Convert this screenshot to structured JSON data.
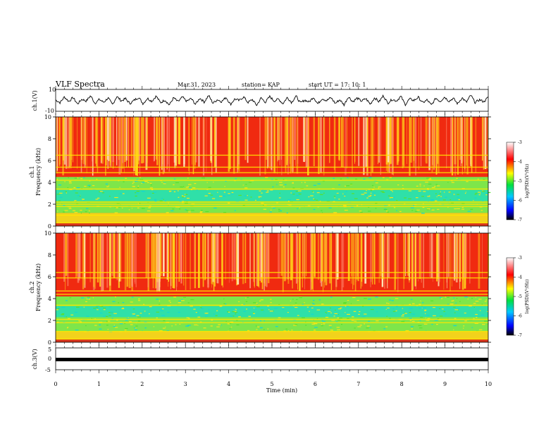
{
  "header": {
    "title": "VLF Spectra",
    "date": "Mar.31, 2023",
    "station": "station= KAP",
    "start": "start  UT =   17: 10: 1"
  },
  "colors": {
    "trace": "#000000",
    "spectrogram_bg": "#f02a10",
    "bands": "#ffe600",
    "noise_band": "#22e68c"
  },
  "chart_data": [
    {
      "type": "line",
      "name": "ch1-waveform",
      "ylabel": "ch.1(V)",
      "ylim": [
        -10,
        10
      ],
      "yticks": [
        "10",
        "-10"
      ],
      "xlim": [
        0,
        10
      ],
      "note_values": "dense oscillating waveform, amplitude ~ -6..+5 V around 0",
      "samples": [
        0.4,
        -2.1,
        3.2,
        -1.0,
        2.6,
        -3.4,
        1.1,
        -0.6,
        4.2,
        -2.7,
        0.9,
        -1.8,
        2.3,
        -4.0,
        3.6,
        -0.4,
        1.5,
        -2.9,
        0.2,
        2.8,
        -3.1,
        1.9,
        -0.8,
        3.9,
        -2.2,
        0.5,
        -4.3,
        2.4,
        -1.3,
        3.0,
        -0.9,
        1.7,
        -3.6,
        2.1,
        -1.5,
        4.5,
        -2.6,
        0.7,
        -1.1,
        2.9,
        -3.8,
        1.4,
        -0.3,
        3.3,
        -2.0,
        0.8,
        -4.6,
        2.2,
        -1.7,
        3.5,
        -0.6,
        1.2,
        -3.0,
        2.7,
        -1.9,
        4.0,
        -2.4,
        0.3,
        -1.6,
        3.1,
        -3.3,
        1.8,
        -0.2,
        2.5,
        -2.8,
        0.6,
        -4.1,
        3.4,
        -1.2,
        2.0,
        -0.7,
        1.6,
        -3.5,
        2.6,
        -1.4,
        4.4,
        -2.5,
        0.9,
        -0.5,
        3.7,
        -3.9,
        1.3,
        -0.1,
        2.8,
        -2.3,
        0.4,
        -4.4,
        2.1,
        -1.0,
        3.2,
        -0.8,
        1.9,
        -3.2,
        2.4,
        -1.8,
        4.8,
        -2.1,
        0.6,
        -1.3,
        3.0
      ]
    },
    {
      "type": "heatmap",
      "name": "ch1-spectrogram",
      "ylabel": "ch.1\nFrequency (kHz)",
      "ylim": [
        0,
        10
      ],
      "yticks": [
        "0",
        "2",
        "4",
        "6",
        "8",
        "10"
      ],
      "xlim": [
        0,
        10
      ],
      "colorbar": {
        "label": "log(PSD)(V²/Hz)",
        "range": [
          -7,
          -3
        ],
        "ticks": [
          "-3",
          "-4",
          "-5",
          "-6",
          "-7"
        ]
      },
      "bands_kHz": {
        "strong_red": [
          4.6,
          10
        ],
        "yellow_lines": [
          0.3,
          1.0,
          1.8,
          2.0,
          2.2,
          3.4,
          4.2,
          4.9,
          5.4,
          6.5
        ],
        "green_noise": [
          1.2,
          4.5
        ]
      }
    },
    {
      "type": "heatmap",
      "name": "ch2-spectrogram",
      "ylabel": "ch.2\nFrequency (kHz)",
      "ylim": [
        0,
        10
      ],
      "yticks": [
        "0",
        "2",
        "4",
        "6",
        "8",
        "10"
      ],
      "xlim": [
        0,
        10
      ],
      "colorbar": {
        "label": "log(PSD)(V²/Hz)",
        "range": [
          -7,
          -3
        ],
        "ticks": [
          "-3",
          "-4",
          "-5",
          "-6",
          "-7"
        ]
      },
      "bands_kHz": {
        "strong_red": [
          4.6,
          10
        ],
        "yellow_lines": [
          0.3,
          1.0,
          1.8,
          2.1,
          3.4,
          4.4,
          4.7,
          5.9,
          6.4
        ],
        "green_noise": [
          1.0,
          4.2
        ]
      }
    },
    {
      "type": "line",
      "name": "ch3-waveform",
      "ylabel": "ch.3(V)",
      "ylim": [
        -5,
        5
      ],
      "yticks": [
        "5",
        "0",
        "-5"
      ],
      "xlim": [
        0,
        10
      ],
      "level": -1,
      "xlabel": "Time (min)",
      "xticks": [
        "0",
        "1",
        "2",
        "3",
        "4",
        "5",
        "6",
        "7",
        "8",
        "9",
        "10"
      ]
    }
  ]
}
